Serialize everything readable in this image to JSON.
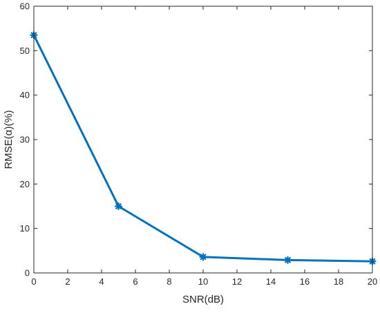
{
  "chart_data": {
    "type": "line",
    "title": "",
    "xlabel": "SNR(dB)",
    "ylabel": "RMSE(α)(%)",
    "xlim": [
      0,
      20
    ],
    "ylim": [
      0,
      60
    ],
    "x_ticks": [
      0,
      2,
      4,
      6,
      8,
      10,
      12,
      14,
      16,
      18,
      20
    ],
    "y_ticks": [
      0,
      10,
      20,
      30,
      40,
      50,
      60
    ],
    "x_tick_labels": [
      "0",
      "2",
      "4",
      "6",
      "8",
      "10",
      "12",
      "14",
      "16",
      "18",
      "20"
    ],
    "y_tick_labels": [
      "0",
      "10",
      "20",
      "30",
      "40",
      "50",
      "60"
    ],
    "grid": false,
    "legend": "none",
    "series": [
      {
        "x": [
          0,
          5,
          10,
          15,
          20
        ],
        "y": [
          53.5,
          15.0,
          3.6,
          2.9,
          2.6
        ],
        "color": "#0072BD",
        "marker": "asterisk"
      }
    ]
  }
}
